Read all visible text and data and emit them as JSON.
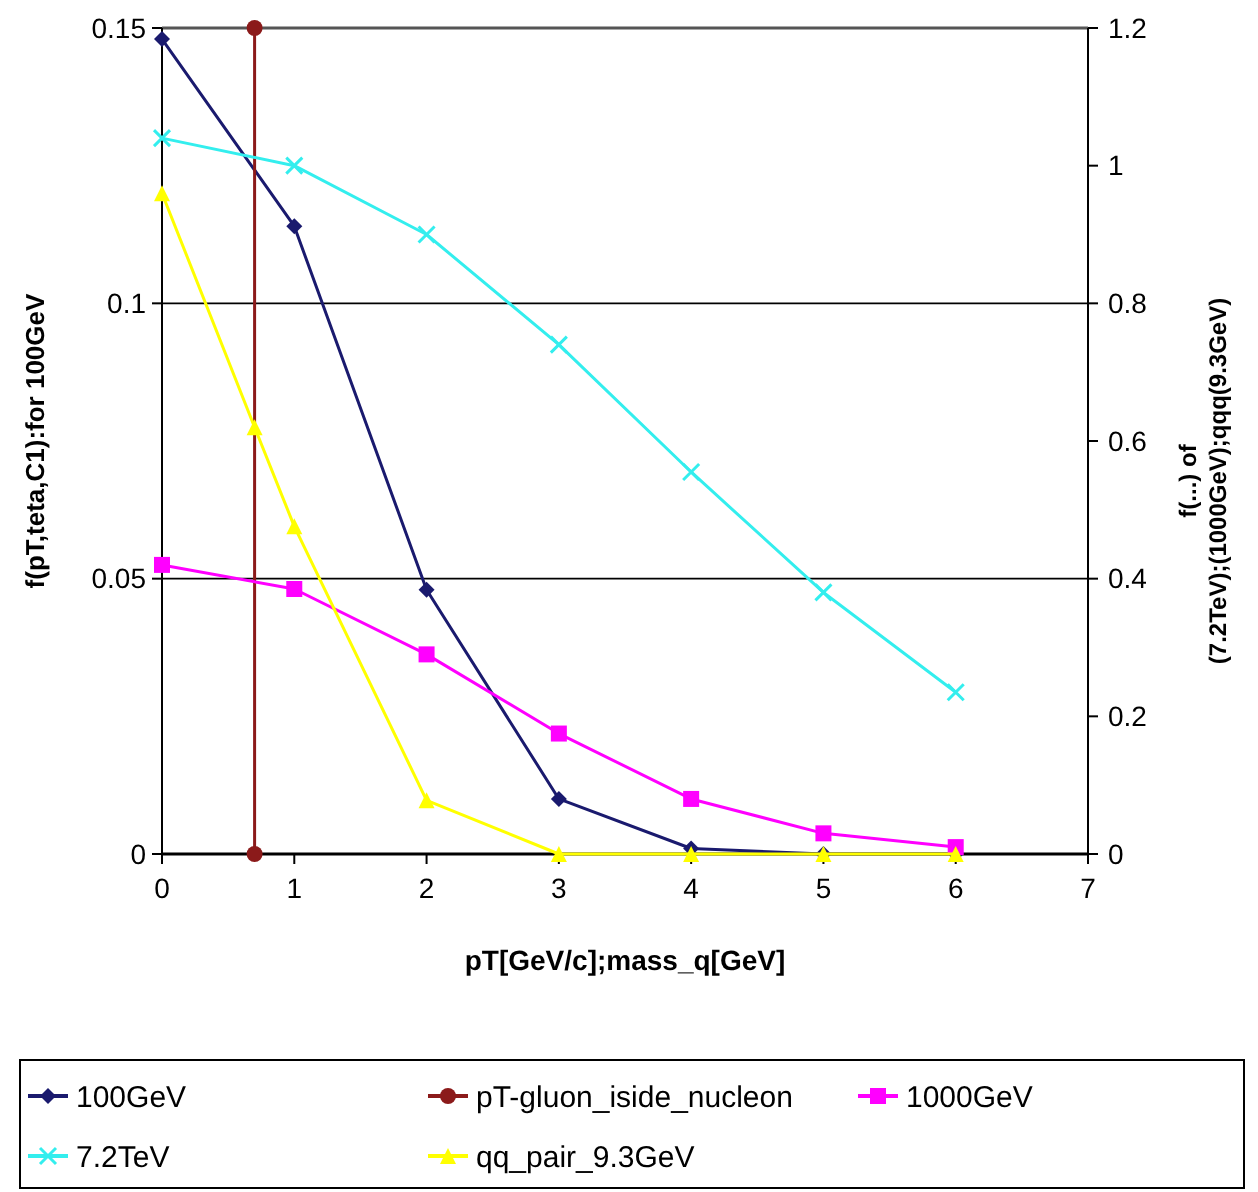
{
  "chart_data": {
    "type": "line",
    "xlabel": "pT[GeV/c];mass_q[GeV]",
    "ylabel": "f(pT,teta,C1):for 100GeV",
    "y2label": "f(...) of (7.2TeV);(1000GeV);qqq(9.3GeV)",
    "x": [
      0,
      1,
      2,
      3,
      4,
      5,
      6
    ],
    "xlim": [
      0,
      7
    ],
    "xticks": [
      0,
      1,
      2,
      3,
      4,
      5,
      6,
      7
    ],
    "ylim": [
      0,
      0.15
    ],
    "yticks": [
      0,
      0.05,
      0.1,
      0.15
    ],
    "y2lim": [
      0,
      1.2
    ],
    "y2ticks": [
      0,
      0.2,
      0.4,
      0.6,
      0.8,
      1,
      1.2
    ],
    "grid": "y",
    "legend": "bottom",
    "series": [
      {
        "name": "100GeV",
        "color": "#1a1a6e",
        "marker": "diamond",
        "values": [
          0.148,
          0.114,
          0.048,
          0.01,
          0.001,
          0,
          0
        ]
      },
      {
        "name": "pT-gluon_iside_nucleon",
        "color": "#8b1a1a",
        "marker": "circle",
        "x": [
          0.7,
          0.7
        ],
        "values": [
          0,
          0.15
        ]
      },
      {
        "name": "1000GeV",
        "color": "#ff00ff",
        "marker": "square",
        "axis": "y2",
        "values": [
          0.42,
          0.385,
          0.29,
          0.175,
          0.08,
          0.03,
          0.01
        ]
      },
      {
        "name": "7.2TeV",
        "color": "#33eeee",
        "marker": "cross",
        "axis": "y2",
        "values": [
          1.04,
          1.0,
          0.9,
          0.74,
          0.555,
          0.38,
          0.235
        ]
      },
      {
        "name": "qq_pair_9.3GeV",
        "color": "#ffff00",
        "marker": "triangle",
        "axis": "y2",
        "x": [
          0,
          0.7,
          1,
          2,
          3,
          4,
          5,
          6
        ],
        "values": [
          0.96,
          0.62,
          0.476,
          0.078,
          0,
          0,
          0,
          0
        ]
      }
    ]
  }
}
